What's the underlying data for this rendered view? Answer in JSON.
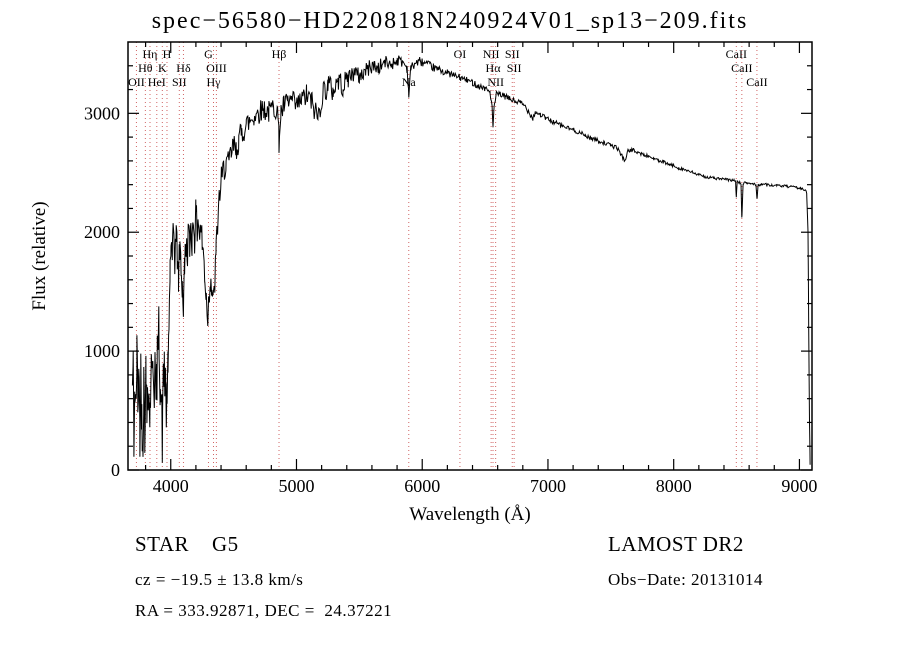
{
  "title": "spec−56580−HD220818N240924V01_sp13−209.fits",
  "footer": {
    "class_label": "STAR    G5",
    "survey": "LAMOST DR2",
    "cz": "cz = −19.5 ± 13.8 km/s",
    "obs_date": "Obs−Date: 20131014",
    "radec": "RA = 333.92871, DEC =  24.37221"
  },
  "chart_data": {
    "type": "line",
    "title": "spec−56580−HD220818N240924V01_sp13−209.fits",
    "xlabel": "Wavelength (Å)",
    "ylabel": "Flux (relative)",
    "xlim": [
      3660,
      9100
    ],
    "ylim": [
      0,
      3600
    ],
    "xticks": [
      4000,
      5000,
      6000,
      7000,
      8000,
      9000
    ],
    "yticks": [
      0,
      1000,
      2000,
      3000
    ],
    "x_minor_step": 200,
    "y_minor_step": 200,
    "grid": false,
    "line_color": "#000000",
    "marker_color": "#cc5555",
    "noise_seed": 42,
    "markers": [
      {
        "wl": 3727,
        "label": "OII",
        "row": 3
      },
      {
        "wl": 3798,
        "label": "Hθ",
        "row": 2
      },
      {
        "wl": 3835,
        "label": "Hη",
        "row": 1
      },
      {
        "wl": 3889,
        "label": "HeI",
        "row": 3
      },
      {
        "wl": 3933,
        "label": "K",
        "row": 2
      },
      {
        "wl": 3970,
        "label": "H",
        "row": 1
      },
      {
        "wl": 4068,
        "label": "SII",
        "row": 3
      },
      {
        "wl": 4101,
        "label": "Hδ",
        "row": 2
      },
      {
        "wl": 4300,
        "label": "G",
        "row": 1
      },
      {
        "wl": 4340,
        "label": "Hγ",
        "row": 3
      },
      {
        "wl": 4363,
        "label": "OIII",
        "row": 2
      },
      {
        "wl": 4861,
        "label": "Hβ",
        "row": 1
      },
      {
        "wl": 5893,
        "label": "Na",
        "row": 3
      },
      {
        "wl": 6300,
        "label": "OI",
        "row": 1
      },
      {
        "wl": 6548,
        "label": "NII",
        "row": 1
      },
      {
        "wl": 6563,
        "label": "Hα",
        "row": 2
      },
      {
        "wl": 6584,
        "label": "NII",
        "row": 3
      },
      {
        "wl": 6716,
        "label": "SII",
        "row": 1
      },
      {
        "wl": 6731,
        "label": "SII",
        "row": 2
      },
      {
        "wl": 8498,
        "label": "CaII",
        "row": 1
      },
      {
        "wl": 8542,
        "label": "CaII",
        "row": 2
      },
      {
        "wl": 8662,
        "label": "CaII",
        "row": 3
      }
    ],
    "envelope": [
      [
        3695,
        650
      ],
      [
        3700,
        900
      ],
      [
        3706,
        250
      ],
      [
        3714,
        700
      ],
      [
        3722,
        420
      ],
      [
        3730,
        950
      ],
      [
        3738,
        600
      ],
      [
        3746,
        850
      ],
      [
        3754,
        350
      ],
      [
        3762,
        780
      ],
      [
        3770,
        500
      ],
      [
        3778,
        320
      ],
      [
        3786,
        700
      ],
      [
        3794,
        420
      ],
      [
        3802,
        760
      ],
      [
        3810,
        500
      ],
      [
        3818,
        860
      ],
      [
        3826,
        600
      ],
      [
        3835,
        480
      ],
      [
        3843,
        900
      ],
      [
        3851,
        650
      ],
      [
        3859,
        1000
      ],
      [
        3867,
        720
      ],
      [
        3875,
        900
      ],
      [
        3883,
        480
      ],
      [
        3891,
        820
      ],
      [
        3899,
        1050
      ],
      [
        3907,
        1150
      ],
      [
        3915,
        820
      ],
      [
        3925,
        520
      ],
      [
        3933,
        300
      ],
      [
        3941,
        650
      ],
      [
        3949,
        880
      ],
      [
        3957,
        720
      ],
      [
        3965,
        560
      ],
      [
        3970,
        480
      ],
      [
        3978,
        850
      ],
      [
        3986,
        1250
      ],
      [
        3994,
        1650
      ],
      [
        4002,
        1900
      ],
      [
        4012,
        1700
      ],
      [
        4022,
        2050
      ],
      [
        4032,
        1780
      ],
      [
        4042,
        1980
      ],
      [
        4052,
        1820
      ],
      [
        4062,
        1620
      ],
      [
        4072,
        1870
      ],
      [
        4082,
        1720
      ],
      [
        4092,
        1540
      ],
      [
        4101,
        1380
      ],
      [
        4110,
        1700
      ],
      [
        4120,
        1920
      ],
      [
        4130,
        1800
      ],
      [
        4140,
        2020
      ],
      [
        4150,
        1860
      ],
      [
        4160,
        2080
      ],
      [
        4170,
        1920
      ],
      [
        4180,
        2120
      ],
      [
        4190,
        1960
      ],
      [
        4200,
        2150
      ],
      [
        4210,
        2020
      ],
      [
        4220,
        2120
      ],
      [
        4230,
        1960
      ],
      [
        4240,
        2060
      ],
      [
        4250,
        1900
      ],
      [
        4260,
        1820
      ],
      [
        4270,
        1650
      ],
      [
        4280,
        1480
      ],
      [
        4295,
        1300
      ],
      [
        4305,
        1480
      ],
      [
        4315,
        1620
      ],
      [
        4328,
        1520
      ],
      [
        4340,
        1400
      ],
      [
        4350,
        1580
      ],
      [
        4360,
        1820
      ],
      [
        4372,
        2050
      ],
      [
        4385,
        2280
      ],
      [
        4400,
        2420
      ],
      [
        4420,
        2520
      ],
      [
        4440,
        2600
      ],
      [
        4460,
        2560
      ],
      [
        4480,
        2660
      ],
      [
        4500,
        2720
      ],
      [
        4520,
        2680
      ],
      [
        4540,
        2780
      ],
      [
        4560,
        2820
      ],
      [
        4580,
        2860
      ],
      [
        4600,
        2900
      ],
      [
        4630,
        2940
      ],
      [
        4660,
        2970
      ],
      [
        4700,
        3010
      ],
      [
        4740,
        3040
      ],
      [
        4780,
        3010
      ],
      [
        4820,
        3060
      ],
      [
        4850,
        3020
      ],
      [
        4861,
        2760
      ],
      [
        4875,
        3000
      ],
      [
        4900,
        3060
      ],
      [
        4930,
        3090
      ],
      [
        4960,
        3110
      ],
      [
        5000,
        3060
      ],
      [
        5040,
        3110
      ],
      [
        5080,
        3150
      ],
      [
        5120,
        3100
      ],
      [
        5170,
        2960
      ],
      [
        5210,
        3180
      ],
      [
        5250,
        3240
      ],
      [
        5290,
        3190
      ],
      [
        5330,
        3280
      ],
      [
        5370,
        3230
      ],
      [
        5410,
        3300
      ],
      [
        5450,
        3340
      ],
      [
        5500,
        3310
      ],
      [
        5550,
        3360
      ],
      [
        5600,
        3400
      ],
      [
        5650,
        3380
      ],
      [
        5700,
        3430
      ],
      [
        5750,
        3410
      ],
      [
        5800,
        3450
      ],
      [
        5850,
        3430
      ],
      [
        5880,
        3380
      ],
      [
        5893,
        3160
      ],
      [
        5910,
        3380
      ],
      [
        5940,
        3420
      ],
      [
        5980,
        3440
      ],
      [
        6020,
        3420
      ],
      [
        6060,
        3400
      ],
      [
        6100,
        3380
      ],
      [
        6150,
        3360
      ],
      [
        6200,
        3340
      ],
      [
        6250,
        3320
      ],
      [
        6300,
        3300
      ],
      [
        6350,
        3280
      ],
      [
        6400,
        3260
      ],
      [
        6450,
        3230
      ],
      [
        6500,
        3210
      ],
      [
        6540,
        3180
      ],
      [
        6556,
        3050
      ],
      [
        6563,
        2860
      ],
      [
        6572,
        3060
      ],
      [
        6590,
        3160
      ],
      [
        6620,
        3160
      ],
      [
        6660,
        3140
      ],
      [
        6700,
        3120
      ],
      [
        6740,
        3100
      ],
      [
        6780,
        3090
      ],
      [
        6820,
        3060
      ],
      [
        6860,
        2990
      ],
      [
        6880,
        2960
      ],
      [
        6900,
        3010
      ],
      [
        6940,
        2990
      ],
      [
        6980,
        2960
      ],
      [
        7020,
        2940
      ],
      [
        7060,
        2920
      ],
      [
        7100,
        2900
      ],
      [
        7150,
        2880
      ],
      [
        7200,
        2860
      ],
      [
        7250,
        2840
      ],
      [
        7300,
        2810
      ],
      [
        7350,
        2790
      ],
      [
        7400,
        2770
      ],
      [
        7450,
        2750
      ],
      [
        7500,
        2730
      ],
      [
        7550,
        2710
      ],
      [
        7590,
        2640
      ],
      [
        7610,
        2600
      ],
      [
        7640,
        2690
      ],
      [
        7680,
        2690
      ],
      [
        7720,
        2670
      ],
      [
        7760,
        2650
      ],
      [
        7800,
        2640
      ],
      [
        7840,
        2620
      ],
      [
        7880,
        2600
      ],
      [
        7920,
        2590
      ],
      [
        7960,
        2570
      ],
      [
        8000,
        2560
      ],
      [
        8040,
        2540
      ],
      [
        8080,
        2530
      ],
      [
        8120,
        2510
      ],
      [
        8160,
        2500
      ],
      [
        8200,
        2480
      ],
      [
        8240,
        2470
      ],
      [
        8280,
        2460
      ],
      [
        8320,
        2455
      ],
      [
        8360,
        2450
      ],
      [
        8400,
        2445
      ],
      [
        8440,
        2440
      ],
      [
        8480,
        2435
      ],
      [
        8492,
        2430
      ],
      [
        8498,
        2300
      ],
      [
        8506,
        2425
      ],
      [
        8520,
        2420
      ],
      [
        8535,
        2410
      ],
      [
        8542,
        2120
      ],
      [
        8552,
        2410
      ],
      [
        8580,
        2415
      ],
      [
        8610,
        2410
      ],
      [
        8640,
        2405
      ],
      [
        8655,
        2400
      ],
      [
        8662,
        2280
      ],
      [
        8672,
        2400
      ],
      [
        8700,
        2405
      ],
      [
        8740,
        2400
      ],
      [
        8780,
        2395
      ],
      [
        8820,
        2390
      ],
      [
        8860,
        2390
      ],
      [
        8900,
        2385
      ],
      [
        8940,
        2380
      ],
      [
        8980,
        2375
      ],
      [
        9010,
        2370
      ],
      [
        9040,
        2360
      ],
      [
        9058,
        2330
      ],
      [
        9068,
        2000
      ],
      [
        9074,
        1200
      ],
      [
        9080,
        400
      ],
      [
        9085,
        40
      ]
    ],
    "noise_profile": [
      [
        3690,
        300
      ],
      [
        3960,
        280
      ],
      [
        4000,
        170
      ],
      [
        4250,
        140
      ],
      [
        4400,
        120
      ],
      [
        4700,
        100
      ],
      [
        5000,
        95
      ],
      [
        5250,
        110
      ],
      [
        5500,
        75
      ],
      [
        5750,
        55
      ],
      [
        5950,
        38
      ],
      [
        6200,
        30
      ],
      [
        6500,
        26
      ],
      [
        6800,
        24
      ],
      [
        7100,
        20
      ],
      [
        7400,
        18
      ],
      [
        7700,
        16
      ],
      [
        8000,
        14
      ],
      [
        8300,
        12
      ],
      [
        8600,
        12
      ],
      [
        9000,
        10
      ]
    ]
  }
}
